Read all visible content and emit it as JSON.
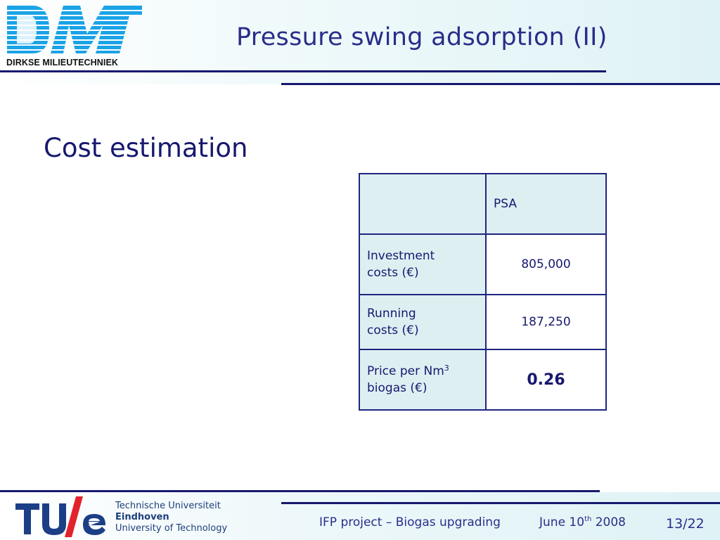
{
  "header": {
    "logo_mark": "DMT",
    "logo_caption": "DIRKSE MILIEUTECHNIEK",
    "title": "Pressure swing adsorption (II)"
  },
  "main": {
    "subtitle": "Cost estimation",
    "table": {
      "column_header": "PSA",
      "rows": [
        {
          "label_line1": "Investment",
          "label_line2": "costs (€)",
          "value": "805,000"
        },
        {
          "label_line1": "Running",
          "label_line2": "costs (€)",
          "value": "187,250"
        },
        {
          "label_line1": "Price per Nm",
          "label_sup": "3",
          "label_line2": "biogas (€)",
          "value": "0.26"
        }
      ]
    }
  },
  "footer": {
    "tue_mark": "TU/e",
    "tue_line1": "Technische Universiteit",
    "tue_line2": "Eindhoven",
    "tue_line3": "University of Technology",
    "project": "IFP project – Biogas upgrading",
    "date_prefix": "June 10",
    "date_sup": "th",
    "date_suffix": " 2008",
    "page": "13/22"
  },
  "colors": {
    "title": "#2a2d8a",
    "rule": "#17186e",
    "logo_blue": "#1aa3e6",
    "table_fill": "#deeff2"
  }
}
